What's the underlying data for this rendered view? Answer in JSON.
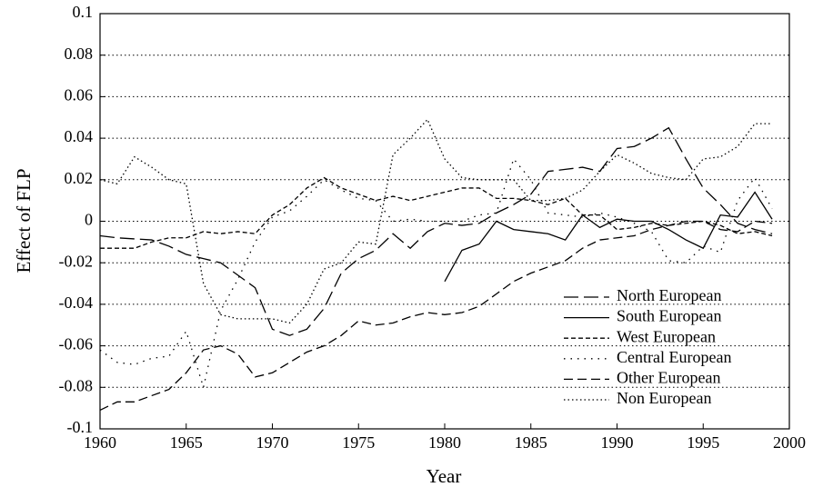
{
  "chart_data": {
    "type": "line",
    "xlabel": "Year",
    "ylabel": "Effect of FLP",
    "x": [
      1960,
      1961,
      1962,
      1963,
      1964,
      1965,
      1966,
      1967,
      1968,
      1969,
      1970,
      1971,
      1972,
      1973,
      1974,
      1975,
      1976,
      1977,
      1978,
      1979,
      1980,
      1981,
      1982,
      1983,
      1984,
      1985,
      1986,
      1987,
      1988,
      1989,
      1990,
      1991,
      1992,
      1993,
      1994,
      1995,
      1996,
      1997,
      1998,
      1999
    ],
    "series": [
      {
        "name": "North European",
        "color": "#000000",
        "dash": "long",
        "values": [
          -0.007,
          -0.008,
          -0.0085,
          -0.009,
          -0.012,
          -0.016,
          -0.018,
          -0.02,
          -0.026,
          -0.032,
          -0.052,
          -0.055,
          -0.052,
          -0.042,
          -0.025,
          -0.018,
          -0.014,
          -0.006,
          -0.013,
          -0.005,
          -0.001,
          -0.002,
          -0.001,
          0.004,
          0.008,
          0.013,
          0.024,
          0.025,
          0.026,
          0.024,
          0.035,
          0.036,
          0.04,
          0.045,
          0.03,
          0.016,
          0.008,
          -0.001,
          -0.004,
          -0.006
        ]
      },
      {
        "name": "South European",
        "color": "#000000",
        "dash": "solid",
        "values": [
          null,
          null,
          null,
          null,
          null,
          null,
          null,
          null,
          null,
          null,
          null,
          null,
          null,
          null,
          null,
          null,
          null,
          null,
          null,
          null,
          -0.029,
          -0.014,
          -0.011,
          0,
          -0.004,
          -0.005,
          -0.006,
          -0.009,
          0.003,
          -0.003,
          0.001,
          0,
          0,
          -0.004,
          -0.009,
          -0.013,
          0.003,
          0.002,
          0.014,
          0.001
        ]
      },
      {
        "name": "West European",
        "color": "#000000",
        "dash": "short",
        "values": [
          -0.013,
          -0.013,
          -0.013,
          -0.01,
          -0.008,
          -0.008,
          -0.005,
          -0.006,
          -0.005,
          -0.006,
          0.003,
          0.008,
          0.016,
          0.021,
          0.016,
          0.013,
          0.01,
          0.012,
          0.01,
          0.012,
          0.014,
          0.016,
          0.016,
          0.011,
          0.011,
          0.01,
          0.008,
          0.011,
          0.003,
          0.003,
          -0.004,
          -0.003,
          -0.001,
          -0.002,
          -0.001,
          0,
          -0.002,
          -0.006,
          -0.005,
          -0.007
        ]
      },
      {
        "name": "Central European",
        "color": "#000000",
        "dash": "sparse",
        "values": [
          -0.062,
          -0.068,
          -0.069,
          -0.066,
          -0.065,
          -0.053,
          -0.08,
          -0.043,
          -0.028,
          -0.01,
          0.002,
          0.005,
          0.012,
          0.02,
          0.015,
          0.011,
          0.01,
          0,
          0.001,
          0,
          0,
          0,
          0.003,
          0.004,
          0.03,
          0.02,
          0.004,
          0.003,
          0.002,
          0.004,
          0.002,
          -0.001,
          -0.005,
          -0.019,
          -0.02,
          -0.012,
          -0.015,
          0.01,
          0.021,
          0.006
        ]
      },
      {
        "name": "Other European",
        "color": "#000000",
        "dash": "medium",
        "values": [
          -0.091,
          -0.087,
          -0.087,
          -0.084,
          -0.081,
          -0.073,
          -0.062,
          -0.06,
          -0.064,
          -0.075,
          -0.073,
          -0.068,
          -0.063,
          -0.06,
          -0.055,
          -0.048,
          -0.05,
          -0.049,
          -0.046,
          -0.044,
          -0.045,
          -0.044,
          -0.041,
          -0.035,
          -0.029,
          -0.025,
          -0.022,
          -0.019,
          -0.013,
          -0.009,
          -0.008,
          -0.007,
          -0.004,
          -0.002,
          0,
          0,
          -0.004,
          -0.005,
          0,
          -0.001
        ]
      },
      {
        "name": "Non European",
        "color": "#000000",
        "dash": "dot",
        "values": [
          0.02,
          0.018,
          0.031,
          0.026,
          0.02,
          0.018,
          -0.03,
          -0.045,
          -0.047,
          -0.047,
          -0.047,
          -0.049,
          -0.04,
          -0.023,
          -0.02,
          -0.01,
          -0.011,
          0.032,
          0.04,
          0.049,
          0.03,
          0.021,
          0.02,
          0.02,
          0.02,
          0.01,
          0.01,
          0.011,
          0.015,
          0.024,
          0.032,
          0.028,
          0.023,
          0.021,
          0.02,
          0.03,
          0.031,
          0.036,
          0.047,
          0.047
        ]
      }
    ],
    "xlim": [
      1960,
      2000
    ],
    "xticks": [
      1960,
      1965,
      1970,
      1975,
      1980,
      1985,
      1990,
      1995,
      2000
    ],
    "ylim": [
      -0.1,
      0.1
    ],
    "yticks": [
      -0.1,
      -0.08,
      -0.06,
      -0.04,
      -0.02,
      0,
      0.02,
      0.04,
      0.06,
      0.08,
      0.1
    ],
    "grid": true,
    "legend": "lower right"
  }
}
